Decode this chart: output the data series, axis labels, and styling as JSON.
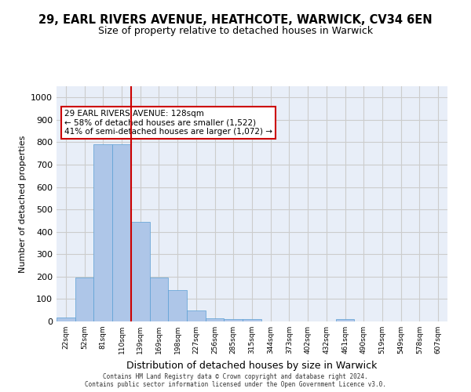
{
  "title": "29, EARL RIVERS AVENUE, HEATHCOTE, WARWICK, CV34 6EN",
  "subtitle": "Size of property relative to detached houses in Warwick",
  "xlabel": "Distribution of detached houses by size in Warwick",
  "ylabel": "Number of detached properties",
  "bar_color": "#aec6e8",
  "bar_edge_color": "#5a9fd4",
  "grid_color": "#cccccc",
  "bg_color": "#e8eef8",
  "categories": [
    "22sqm",
    "52sqm",
    "81sqm",
    "110sqm",
    "139sqm",
    "169sqm",
    "198sqm",
    "227sqm",
    "256sqm",
    "285sqm",
    "315sqm",
    "344sqm",
    "373sqm",
    "402sqm",
    "432sqm",
    "461sqm",
    "490sqm",
    "519sqm",
    "549sqm",
    "578sqm",
    "607sqm"
  ],
  "values": [
    18,
    196,
    790,
    790,
    445,
    196,
    140,
    50,
    15,
    12,
    12,
    0,
    0,
    0,
    0,
    10,
    0,
    0,
    0,
    0,
    0
  ],
  "ylim": [
    0,
    1050
  ],
  "yticks": [
    0,
    100,
    200,
    300,
    400,
    500,
    600,
    700,
    800,
    900,
    1000
  ],
  "property_line_x": 3.5,
  "property_size": "128sqm",
  "annotation_text": "29 EARL RIVERS AVENUE: 128sqm\n← 58% of detached houses are smaller (1,522)\n41% of semi-detached houses are larger (1,072) →",
  "annotation_box_color": "#ffffff",
  "annotation_border_color": "#cc0000",
  "vline_color": "#cc0000",
  "footer_line1": "Contains HM Land Registry data © Crown copyright and database right 2024.",
  "footer_line2": "Contains public sector information licensed under the Open Government Licence v3.0."
}
